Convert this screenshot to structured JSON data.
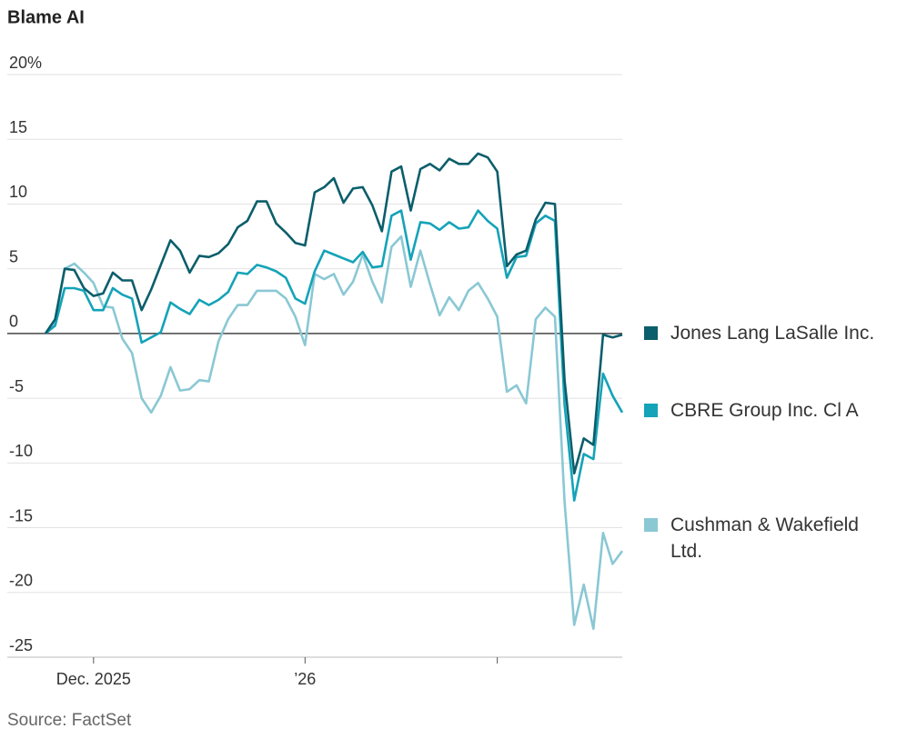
{
  "chart_data": {
    "type": "line",
    "title": "Blame AI",
    "source": "Source: FactSet",
    "categories": [
      null,
      null,
      null,
      null,
      null,
      "Dec. 2025",
      null,
      null,
      null,
      null,
      null,
      null,
      null,
      null,
      null,
      null,
      null,
      null,
      null,
      null,
      null,
      null,
      null,
      null,
      null,
      null,
      null,
      "’26",
      null,
      null,
      null,
      null,
      null,
      null,
      null,
      null,
      null,
      null,
      null,
      null,
      null,
      null,
      null,
      null,
      null,
      null,
      null,
      null,
      null,
      null,
      null,
      null,
      null,
      null,
      null,
      null,
      null,
      null,
      null,
      null,
      null
    ],
    "xticks": [
      5,
      27,
      47
    ],
    "ylim": [
      -25,
      20
    ],
    "yticks": [
      -25,
      -20,
      -15,
      -10,
      -5,
      0,
      5,
      10,
      15,
      {
        "value": 20,
        "label": "20%"
      }
    ],
    "grid": true,
    "legend": "right",
    "series": [
      {
        "name": "Jones Lang LaSalle Inc.",
        "color": "#0b5e6b",
        "values": [
          0,
          1.1,
          5.0,
          4.9,
          3.5,
          2.9,
          3.1,
          4.7,
          4.1,
          4.1,
          1.8,
          3.4,
          5.3,
          7.2,
          6.4,
          4.7,
          6.0,
          5.9,
          6.2,
          6.9,
          8.2,
          8.7,
          10.2,
          10.2,
          8.5,
          7.8,
          7.0,
          6.8,
          10.9,
          11.3,
          12.0,
          10.1,
          11.2,
          11.3,
          9.9,
          7.9,
          12.5,
          12.9,
          9.5,
          12.7,
          13.1,
          12.6,
          13.5,
          13.1,
          13.1,
          13.9,
          13.6,
          12.5,
          5.2,
          6.1,
          6.4,
          8.8,
          10.1,
          10.0,
          -3.6,
          -10.8,
          -8.1,
          -8.6,
          -0.1,
          -0.3,
          -0.1
        ]
      },
      {
        "name": "CBRE Group Inc. Cl A",
        "color": "#14a3b8",
        "values": [
          0,
          0.6,
          3.5,
          3.5,
          3.3,
          1.8,
          1.8,
          3.5,
          3.0,
          2.7,
          -0.7,
          -0.3,
          0.1,
          2.4,
          1.9,
          1.5,
          2.6,
          2.2,
          2.6,
          3.2,
          4.7,
          4.6,
          5.3,
          5.1,
          4.8,
          4.3,
          2.7,
          2.3,
          4.8,
          6.4,
          6.1,
          5.8,
          5.5,
          6.3,
          5.1,
          5.2,
          9.1,
          9.5,
          5.7,
          8.6,
          8.5,
          8.0,
          8.6,
          8.1,
          8.2,
          9.5,
          8.7,
          8.1,
          4.3,
          5.9,
          6.0,
          8.5,
          9.1,
          8.7,
          -5.5,
          -12.9,
          -9.3,
          -9.7,
          -3.1,
          -4.8,
          -6.1
        ]
      },
      {
        "name": "Cushman & Wakefield Ltd.",
        "color": "#8ac8d4",
        "values": [
          0,
          0.9,
          5.0,
          5.4,
          4.7,
          3.9,
          2.1,
          2.0,
          -0.4,
          -1.5,
          -5.0,
          -6.1,
          -4.8,
          -2.6,
          -4.4,
          -4.3,
          -3.6,
          -3.7,
          -0.6,
          1.1,
          2.2,
          2.2,
          3.3,
          3.3,
          3.3,
          2.7,
          1.3,
          -0.9,
          4.6,
          4.2,
          4.6,
          3.0,
          4.0,
          6.1,
          4.0,
          2.4,
          6.7,
          7.5,
          3.6,
          6.4,
          3.8,
          1.4,
          2.8,
          1.8,
          3.3,
          3.9,
          2.7,
          1.3,
          -4.5,
          -4.0,
          -5.4,
          1.1,
          2.0,
          1.3,
          -13.0,
          -22.5,
          -19.4,
          -22.8,
          -15.4,
          -17.8,
          -16.8
        ]
      }
    ]
  }
}
